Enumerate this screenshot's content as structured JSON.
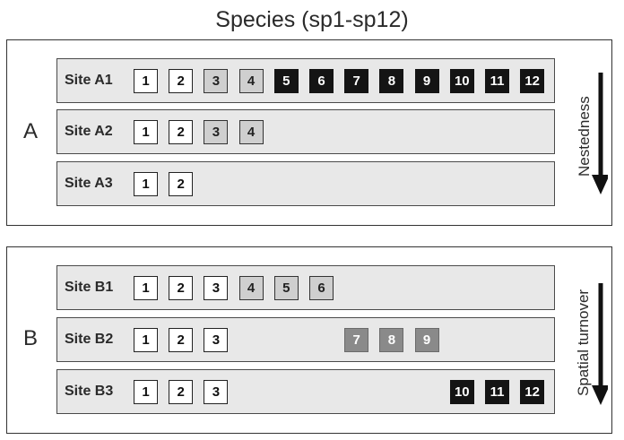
{
  "title": "Species (sp1-sp12)",
  "panels": [
    {
      "label": "A",
      "arrow_label": "Nestedness",
      "rows": [
        {
          "label": "Site A1",
          "species": [
            {
              "n": "1",
              "tone": "white"
            },
            {
              "n": "2",
              "tone": "white"
            },
            {
              "n": "3",
              "tone": "light"
            },
            {
              "n": "4",
              "tone": "light"
            },
            {
              "n": "5",
              "tone": "black"
            },
            {
              "n": "6",
              "tone": "black"
            },
            {
              "n": "7",
              "tone": "black"
            },
            {
              "n": "8",
              "tone": "black"
            },
            {
              "n": "9",
              "tone": "black"
            },
            {
              "n": "10",
              "tone": "black"
            },
            {
              "n": "11",
              "tone": "black"
            },
            {
              "n": "12",
              "tone": "black"
            }
          ]
        },
        {
          "label": "Site A2",
          "species": [
            {
              "n": "1",
              "tone": "white"
            },
            {
              "n": "2",
              "tone": "white"
            },
            {
              "n": "3",
              "tone": "light"
            },
            {
              "n": "4",
              "tone": "light"
            }
          ]
        },
        {
          "label": "Site A3",
          "species": [
            {
              "n": "1",
              "tone": "white"
            },
            {
              "n": "2",
              "tone": "white"
            }
          ]
        }
      ]
    },
    {
      "label": "B",
      "arrow_label": "Spatial turnover",
      "rows": [
        {
          "label": "Site B1",
          "species": [
            {
              "n": "1",
              "tone": "white"
            },
            {
              "n": "2",
              "tone": "white"
            },
            {
              "n": "3",
              "tone": "white"
            },
            {
              "n": "4",
              "tone": "light"
            },
            {
              "n": "5",
              "tone": "light"
            },
            {
              "n": "6",
              "tone": "light"
            }
          ]
        },
        {
          "label": "Site B2",
          "species": [
            {
              "n": "1",
              "tone": "white"
            },
            {
              "n": "2",
              "tone": "white"
            },
            {
              "n": "3",
              "tone": "white"
            },
            {
              "n": "7",
              "tone": "mid"
            },
            {
              "n": "8",
              "tone": "mid"
            },
            {
              "n": "9",
              "tone": "mid"
            }
          ]
        },
        {
          "label": "Site B3",
          "species": [
            {
              "n": "1",
              "tone": "white"
            },
            {
              "n": "2",
              "tone": "white"
            },
            {
              "n": "3",
              "tone": "white"
            },
            {
              "n": "10",
              "tone": "black"
            },
            {
              "n": "11",
              "tone": "black"
            },
            {
              "n": "12",
              "tone": "black"
            }
          ]
        }
      ]
    }
  ],
  "colors": {
    "white": "#ffffff",
    "light": "#cfcfcf",
    "mid": "#8a8a8a",
    "black": "#141414",
    "row_background": "#e8e8e8"
  }
}
